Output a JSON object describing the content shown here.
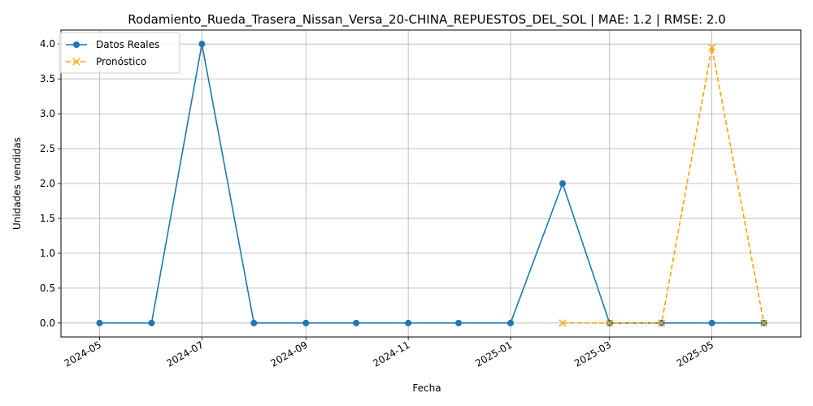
{
  "chart_data": {
    "type": "line",
    "title": "Rodamiento_Rueda_Trasera_Nissan_Versa_20-CHINA_REPUESTOS_DEL_SOL | MAE: 1.2 | RMSE: 2.0",
    "xlabel": "Fecha",
    "ylabel": "Unidades vendidas",
    "ylim": [
      -0.2,
      4.2
    ],
    "xlim": [
      "2024-04-08",
      "2025-06-23"
    ],
    "grid": true,
    "legend_position": "top-left",
    "x_ticks": [
      "2024-05",
      "2024-07",
      "2024-09",
      "2024-11",
      "2025-01",
      "2025-03",
      "2025-05"
    ],
    "x_tick_dates": [
      "2024-05-01",
      "2024-07-01",
      "2024-09-01",
      "2024-11-01",
      "2025-01-01",
      "2025-03-01",
      "2025-05-01"
    ],
    "y_ticks": [
      "0.0",
      "0.5",
      "1.0",
      "1.5",
      "2.0",
      "2.5",
      "3.0",
      "3.5",
      "4.0"
    ],
    "y_tick_values": [
      0,
      0.5,
      1,
      1.5,
      2,
      2.5,
      3,
      3.5,
      4
    ],
    "series": [
      {
        "name": "Datos Reales",
        "color": "#1f77b4",
        "style": "solid",
        "marker": "circle",
        "x": [
          "2024-05-01",
          "2024-06-01",
          "2024-07-01",
          "2024-08-01",
          "2024-09-01",
          "2024-10-01",
          "2024-11-01",
          "2024-12-01",
          "2025-01-01",
          "2025-02-01",
          "2025-03-01",
          "2025-04-01",
          "2025-05-01",
          "2025-06-01"
        ],
        "y": [
          0,
          0,
          4,
          0,
          0,
          0,
          0,
          0,
          0,
          2,
          0,
          0,
          0,
          0
        ]
      },
      {
        "name": "Pronóstico",
        "color": "#ffa500",
        "style": "dashed",
        "marker": "x",
        "x": [
          "2025-02-01",
          "2025-03-01",
          "2025-04-01",
          "2025-05-01",
          "2025-06-01"
        ],
        "y": [
          0,
          0,
          0,
          3.95,
          0
        ]
      }
    ]
  }
}
